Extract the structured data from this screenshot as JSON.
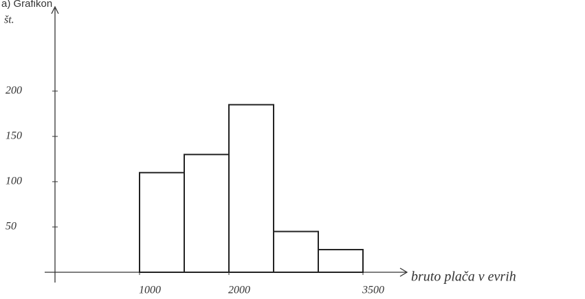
{
  "chart_data": {
    "type": "histogram",
    "title": "a) Grafikon",
    "y_label": "št.",
    "x_label": "bruto plača v evrih",
    "bins": [
      1000,
      1500,
      2000,
      2500,
      3000,
      3500
    ],
    "counts": [
      110,
      130,
      185,
      45,
      25
    ],
    "xlim": [
      0,
      4000
    ],
    "ylim": [
      0,
      290
    ],
    "xticks": [
      1000,
      2000,
      3500
    ],
    "yticks": [
      50,
      100,
      150,
      200
    ],
    "color": "#ffffff"
  }
}
